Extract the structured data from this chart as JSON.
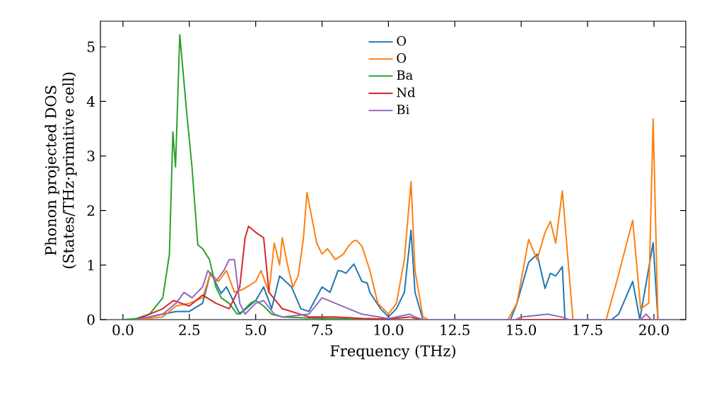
{
  "chart_data": {
    "type": "line",
    "xlabel": "Frequency (THz)",
    "ylabel": "Phonon projected DOS\n(States/THz·primitive cell)",
    "xlim": [
      -0.85,
      21.2
    ],
    "ylim": [
      0,
      5.47
    ],
    "xticks": [
      {
        "value": 0,
        "label": "0.0"
      },
      {
        "value": 2.5,
        "label": "2.5"
      },
      {
        "value": 5,
        "label": "5.0"
      },
      {
        "value": 7.5,
        "label": "7.5"
      },
      {
        "value": 10,
        "label": "10.0"
      },
      {
        "value": 12.5,
        "label": "12.5"
      },
      {
        "value": 15,
        "label": "15.0"
      },
      {
        "value": 17.5,
        "label": "17.5"
      },
      {
        "value": 20,
        "label": "20.0"
      }
    ],
    "yticks": [
      0,
      1,
      2,
      3,
      4,
      5
    ],
    "legend": "top",
    "grid": false,
    "marker": "none",
    "line_style": "solid",
    "series": [
      {
        "name": "O",
        "color": "#1f77b4",
        "x": [
          0.5,
          1.5,
          2.0,
          2.5,
          3.0,
          3.3,
          3.7,
          3.9,
          4.4,
          5.0,
          5.3,
          5.6,
          5.9,
          6.35,
          6.7,
          7.0,
          7.5,
          7.8,
          8.1,
          8.23,
          8.4,
          8.7,
          9.0,
          9.2,
          9.3,
          9.7,
          10.0,
          10.3,
          10.6,
          10.85,
          11.0,
          11.3,
          14.6,
          14.84,
          15.28,
          15.6,
          15.9,
          16.1,
          16.3,
          16.55,
          16.65,
          18.4,
          18.67,
          19.2,
          19.47,
          19.97,
          20.15,
          20.5
        ],
        "values": [
          0,
          0.1,
          0.15,
          0.15,
          0.3,
          0.86,
          0.48,
          0.6,
          0.1,
          0.35,
          0.6,
          0.2,
          0.8,
          0.6,
          0.2,
          0.15,
          0.6,
          0.5,
          0.9,
          0.89,
          0.85,
          1.02,
          0.7,
          0.67,
          0.5,
          0.2,
          0.05,
          0.2,
          0.5,
          1.64,
          0.5,
          0,
          0,
          0.3,
          1.05,
          1.2,
          0.57,
          0.85,
          0.8,
          0.97,
          0,
          0,
          0.1,
          0.7,
          0,
          1.41,
          0,
          0
        ]
      },
      {
        "name": "O",
        "color": "#ff7f0e",
        "x": [
          0.5,
          1.5,
          2.0,
          2.5,
          3.0,
          3.3,
          3.6,
          3.9,
          4.2,
          4.5,
          5.0,
          5.2,
          5.5,
          5.7,
          5.9,
          6.0,
          6.2,
          6.4,
          6.6,
          6.8,
          6.93,
          7.3,
          7.5,
          7.7,
          8.0,
          8.3,
          8.5,
          8.7,
          8.8,
          9.0,
          9.3,
          9.6,
          10.0,
          10.3,
          10.6,
          10.85,
          11.0,
          11.3,
          11.5,
          14.5,
          14.84,
          15.28,
          15.6,
          15.9,
          16.1,
          16.3,
          16.55,
          16.95,
          18.2,
          18.6,
          19.2,
          19.5,
          19.8,
          19.97,
          20.15,
          20.5
        ],
        "values": [
          0,
          0.05,
          0.25,
          0.3,
          0.4,
          0.85,
          0.7,
          0.9,
          0.5,
          0.55,
          0.7,
          0.9,
          0.5,
          1.4,
          1.0,
          1.5,
          1.0,
          0.6,
          0.8,
          1.5,
          2.33,
          1.4,
          1.2,
          1.3,
          1.1,
          1.2,
          1.35,
          1.45,
          1.45,
          1.35,
          0.9,
          0.3,
          0.1,
          0.3,
          1.1,
          2.53,
          0.9,
          0.05,
          0,
          0,
          0.3,
          1.47,
          1.1,
          1.6,
          1.8,
          1.4,
          2.36,
          0,
          0,
          0.7,
          1.82,
          0.2,
          0.3,
          3.68,
          0,
          0
        ]
      },
      {
        "name": "Ba",
        "color": "#2ca02c",
        "x": [
          0.0,
          0.5,
          1.0,
          1.5,
          1.75,
          1.88,
          1.98,
          2.14,
          2.4,
          2.6,
          2.82,
          3.0,
          3.26,
          3.5,
          3.7,
          4.0,
          4.3,
          4.5,
          4.8,
          5.0,
          5.3,
          5.6,
          6.0,
          7.0,
          8.0,
          9.0,
          10.0
        ],
        "values": [
          0,
          0.02,
          0.1,
          0.4,
          1.2,
          3.44,
          2.8,
          5.22,
          3.8,
          2.8,
          1.37,
          1.3,
          1.1,
          0.6,
          0.4,
          0.3,
          0.1,
          0.15,
          0.3,
          0.35,
          0.25,
          0.1,
          0.05,
          0.03,
          0.02,
          0.02,
          0.01
        ]
      },
      {
        "name": "Nd",
        "color": "#d62728",
        "x": [
          0.5,
          1.5,
          1.9,
          2.2,
          2.5,
          3.0,
          3.5,
          4.0,
          4.4,
          4.6,
          4.73,
          5.0,
          5.3,
          5.5,
          6.0,
          7.0,
          8.0,
          9.0,
          10.0,
          10.8,
          11.2,
          20.5
        ],
        "values": [
          0,
          0.2,
          0.35,
          0.3,
          0.25,
          0.45,
          0.3,
          0.2,
          0.6,
          1.5,
          1.71,
          1.6,
          1.5,
          0.5,
          0.2,
          0.05,
          0.05,
          0.02,
          0.01,
          0.05,
          0,
          0
        ]
      },
      {
        "name": "Bi",
        "color": "#9467bd",
        "x": [
          0.5,
          1.5,
          2.0,
          2.3,
          2.6,
          3.0,
          3.2,
          3.5,
          3.8,
          4.0,
          4.2,
          4.4,
          4.6,
          5.0,
          5.3,
          5.7,
          6.0,
          7.0,
          7.5,
          8.0,
          8.5,
          9.0,
          10.0,
          10.8,
          11.0,
          11.3,
          14.8,
          15.0,
          16.0,
          16.5,
          16.8,
          19.5,
          19.7,
          19.9,
          20.5
        ],
        "values": [
          0,
          0.1,
          0.3,
          0.5,
          0.4,
          0.6,
          0.9,
          0.7,
          0.9,
          1.1,
          1.1,
          0.3,
          0.1,
          0.3,
          0.35,
          0.1,
          0.05,
          0.1,
          0.4,
          0.3,
          0.2,
          0.1,
          0.02,
          0.1,
          0.05,
          0,
          0,
          0.05,
          0.1,
          0.05,
          0,
          0,
          0.1,
          0,
          0
        ]
      }
    ]
  }
}
